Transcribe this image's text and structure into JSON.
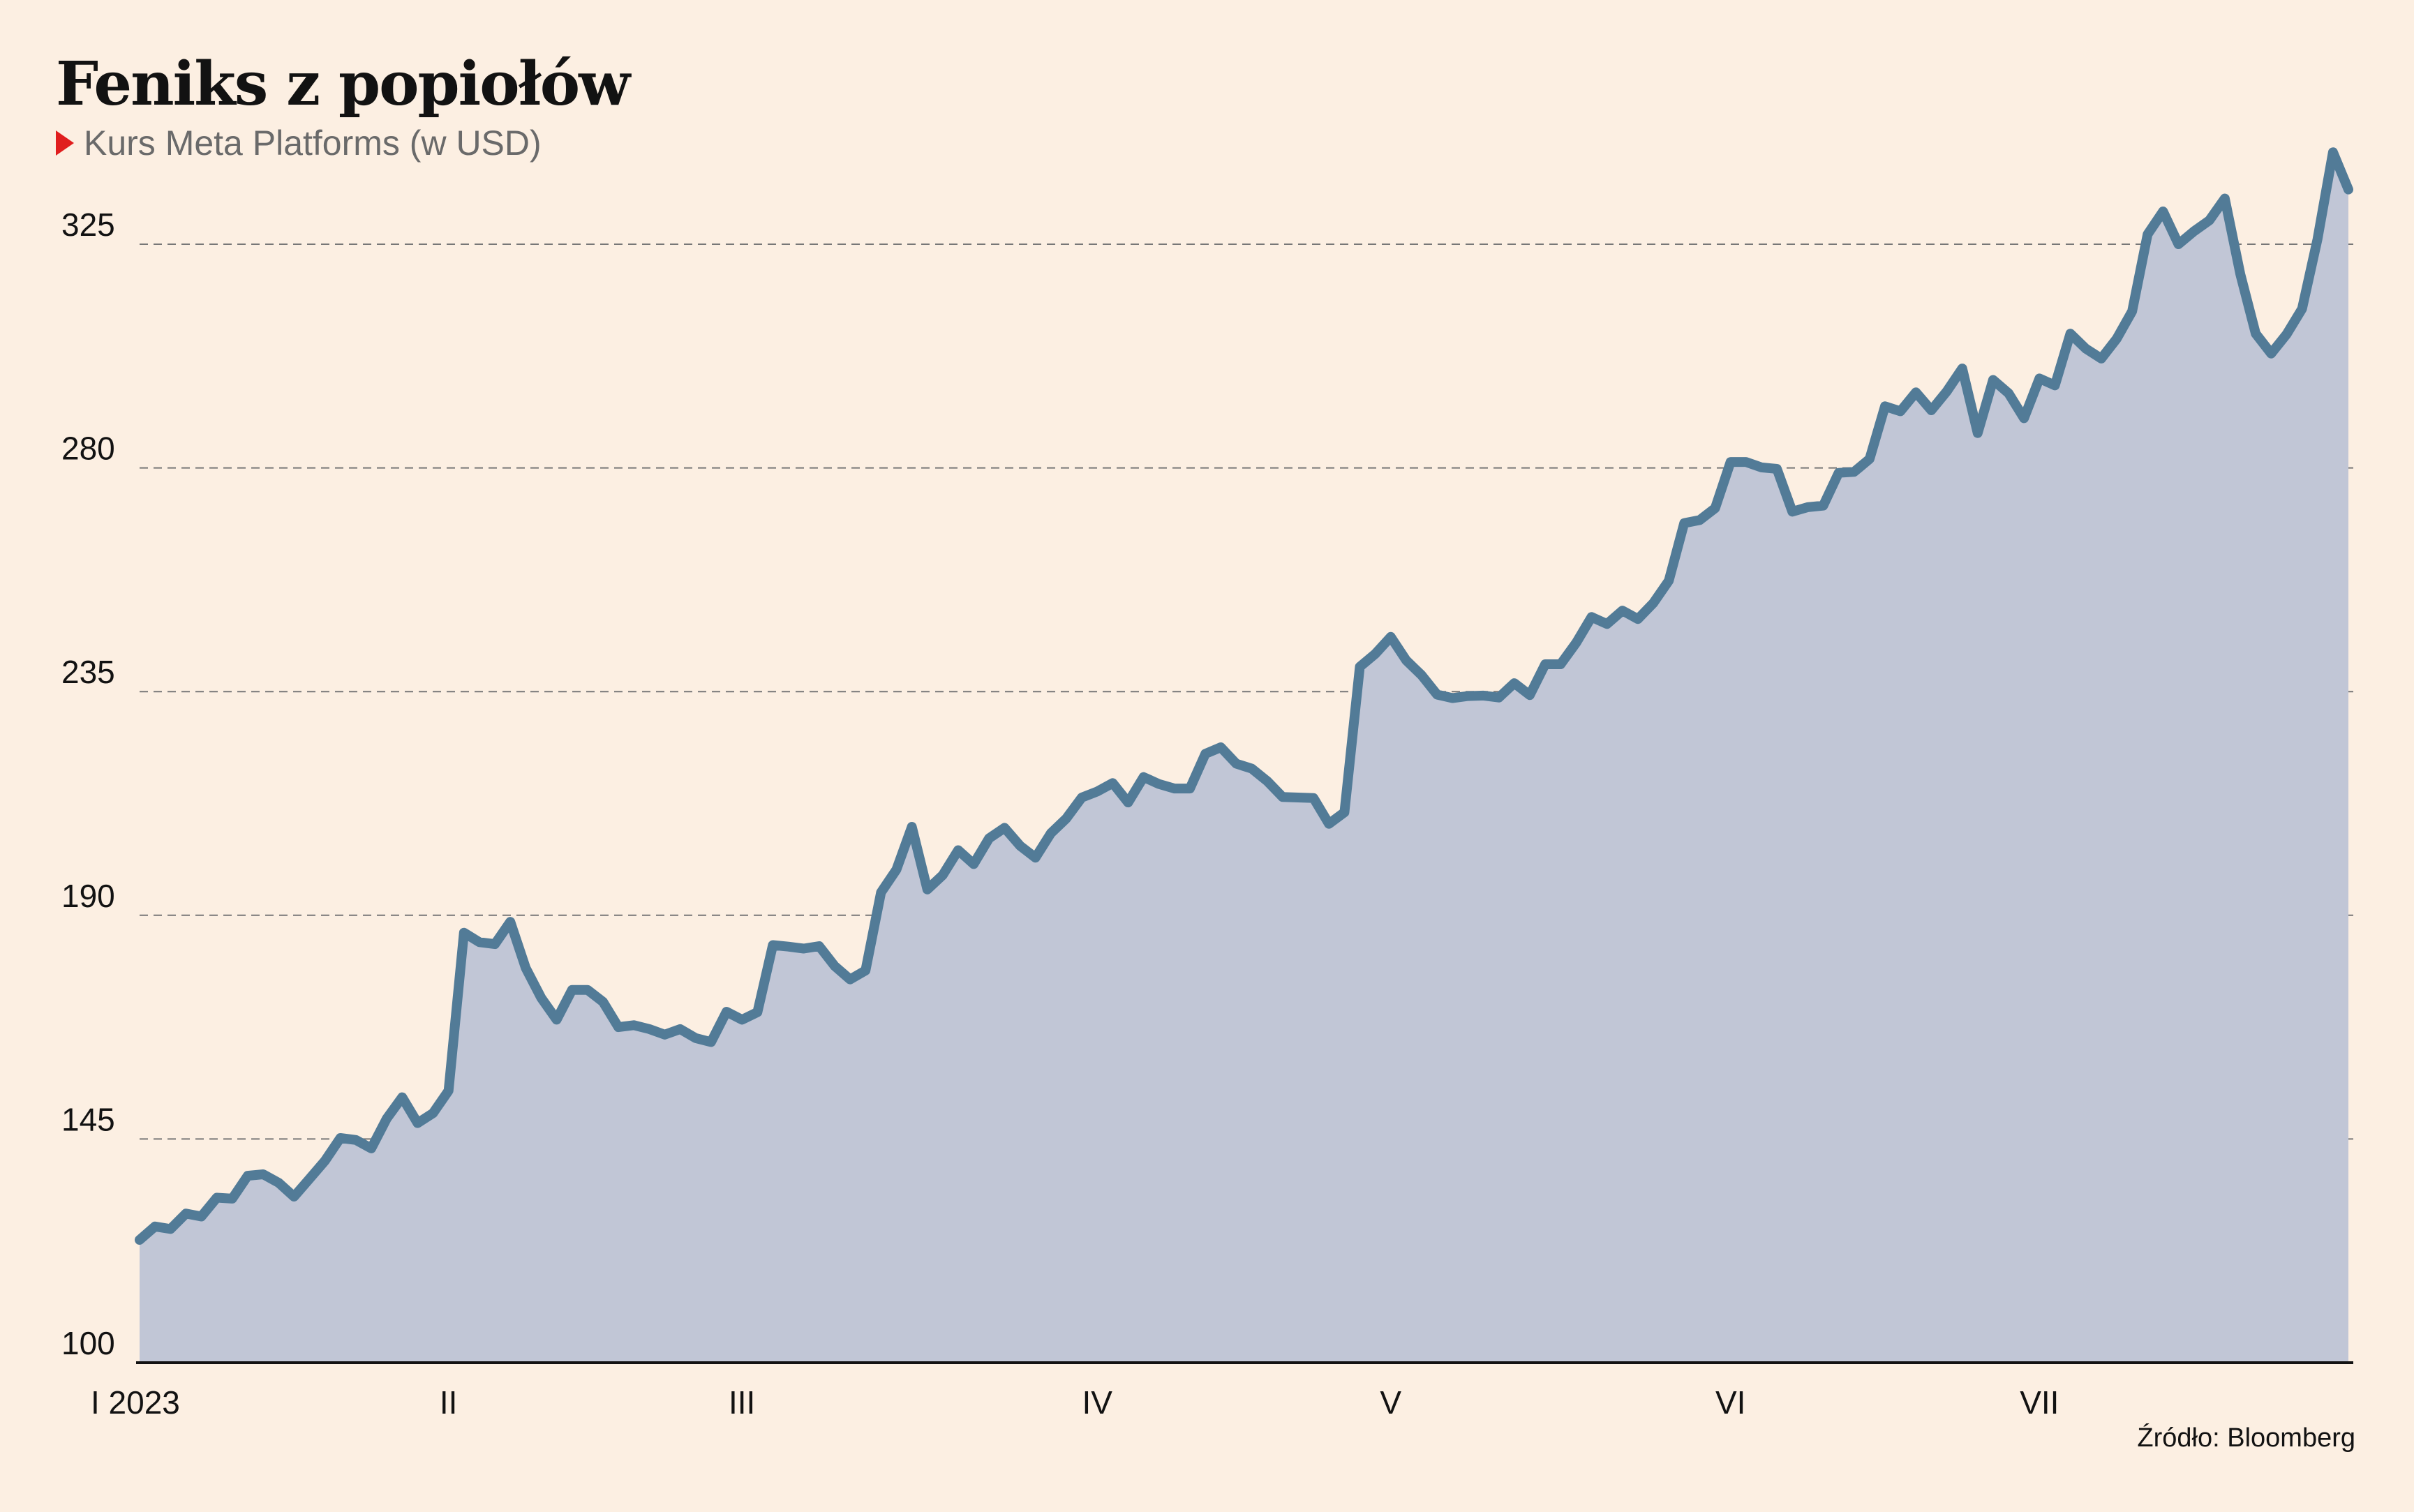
{
  "chart_data": {
    "type": "area",
    "title": "Feniks z popiołów",
    "subtitle": "Kurs Meta Platforms (w USD)",
    "source": "Źródło: Bloomberg",
    "xlabel": "",
    "ylabel": "",
    "ylim": [
      100,
      325
    ],
    "yticks": [
      100,
      145,
      190,
      235,
      280,
      325
    ],
    "grid": true,
    "colors": {
      "line": "#527b97",
      "fill": "#c1c6d6",
      "grid": "#777777",
      "background": "#fcefe2",
      "axis": "#121212"
    },
    "month_ticks": [
      {
        "label": "I 2023",
        "index": 0
      },
      {
        "label": "II",
        "index": 20
      },
      {
        "label": "III",
        "index": 39
      },
      {
        "label": "IV",
        "index": 62
      },
      {
        "label": "V",
        "index": 81
      },
      {
        "label": "VI",
        "index": 103
      },
      {
        "label": "VII",
        "index": 123
      }
    ],
    "series": [
      {
        "values": [
          124.7,
          127.4,
          126.9,
          130.0,
          129.4,
          133.2,
          133.0,
          137.6,
          137.9,
          136.2,
          133.4,
          137.0,
          140.6,
          145.2,
          144.8,
          143.1,
          149.1,
          153.4,
          148.2,
          150.2,
          154.7,
          186.5,
          184.6,
          184.2,
          188.7,
          179.4,
          173.4,
          169.0,
          175.0,
          175.0,
          172.6,
          167.5,
          167.9,
          167.1,
          166.0,
          167.1,
          165.3,
          164.5,
          170.6,
          169.0,
          170.5,
          184.0,
          183.7,
          183.3,
          183.8,
          179.8,
          177.1,
          178.9,
          194.6,
          199.2,
          207.8,
          195.2,
          198.1,
          203.1,
          200.3,
          205.5,
          207.6,
          204.0,
          201.6,
          206.5,
          209.5,
          213.7,
          214.9,
          216.6,
          212.7,
          217.8,
          216.4,
          215.5,
          215.5,
          222.5,
          223.8,
          220.5,
          219.5,
          217.0,
          213.8,
          213.7,
          213.6,
          208.4,
          210.7,
          240.0,
          242.6,
          246.0,
          241.3,
          238.3,
          234.4,
          233.7,
          234.1,
          234.2,
          233.8,
          236.7,
          234.3,
          240.5,
          240.5,
          244.8,
          250.0,
          248.6,
          251.3,
          249.6,
          252.8,
          257.3,
          268.9,
          269.5,
          271.9,
          281.2,
          281.2,
          280.1,
          279.8,
          271.2,
          272.1,
          272.4,
          279.0,
          279.2,
          281.8,
          292.4,
          291.4,
          295.2,
          291.6,
          295.4,
          300.0,
          287.0,
          297.7,
          295.0,
          290.0,
          298.0,
          296.6,
          307.0,
          304.0,
          302.0,
          306.0,
          311.5,
          327.0,
          331.6,
          325.0,
          327.6,
          329.8,
          334.2,
          319.0,
          307.0,
          303.0,
          306.9,
          312.0,
          326.0,
          343.5,
          336.0
        ]
      }
    ]
  }
}
